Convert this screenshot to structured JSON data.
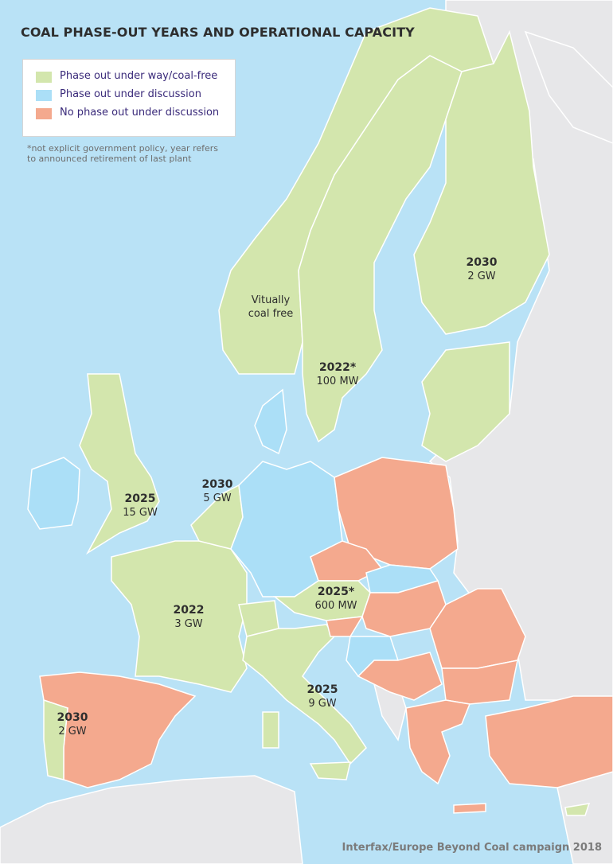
{
  "title": "COAL PHASE-OUT YEARS AND OPERATIONAL CAPACITY",
  "legend": [
    {
      "label": "Phase out under way/coal-free",
      "color": "#d3e6ad"
    },
    {
      "label": "Phase out under discussion",
      "color": "#abdff7"
    },
    {
      "label": "No phase out under discussion",
      "color": "#f4a98e"
    }
  ],
  "footnote": [
    "*not explicit government policy, year refers",
    "to announced retirement of last plant"
  ],
  "colors": {
    "sea": "#b9e2f6",
    "non_eu_land": "#e7e7e9",
    "border": "#ffffff"
  },
  "labels": {
    "finland": {
      "year": "2030",
      "capacity": "2 GW"
    },
    "norway": {
      "line1": "Vitually",
      "line2": "coal free"
    },
    "sweden": {
      "year": "2022*",
      "capacity": "100 MW"
    },
    "uk": {
      "year": "2025",
      "capacity": "15 GW"
    },
    "netherlands": {
      "year": "2030",
      "capacity": "5 GW"
    },
    "france": {
      "year": "2022",
      "capacity": "3 GW"
    },
    "austria": {
      "year": "2025*",
      "capacity": "600 MW"
    },
    "italy": {
      "year": "2025",
      "capacity": "9 GW"
    },
    "portugal": {
      "year": "2030",
      "capacity": "2 GW"
    }
  },
  "credit": "Interfax/Europe Beyond Coal campaign 2018"
}
